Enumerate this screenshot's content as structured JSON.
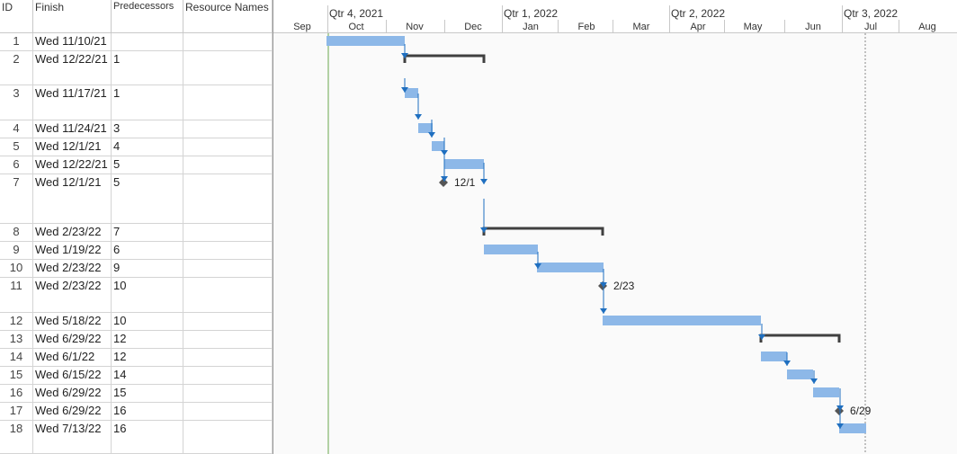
{
  "columns": {
    "id": "ID",
    "finish": "Finish",
    "predecessors": "Predecessors",
    "resource_names": "Resource Names"
  },
  "rows": [
    {
      "id": "1",
      "finish": "Wed 11/10/21",
      "pred": "",
      "res": ""
    },
    {
      "id": "2",
      "finish": "Wed 12/22/21",
      "pred": "1",
      "res": ""
    },
    {
      "id": "3",
      "finish": "Wed 11/17/21",
      "pred": "1",
      "res": ""
    },
    {
      "id": "4",
      "finish": "Wed 11/24/21",
      "pred": "3",
      "res": ""
    },
    {
      "id": "5",
      "finish": "Wed 12/1/21",
      "pred": "4",
      "res": ""
    },
    {
      "id": "6",
      "finish": "Wed 12/22/21",
      "pred": "5",
      "res": ""
    },
    {
      "id": "7",
      "finish": "Wed 12/1/21",
      "pred": "5",
      "res": ""
    },
    {
      "id": "8",
      "finish": "Wed 2/23/22",
      "pred": "7",
      "res": ""
    },
    {
      "id": "9",
      "finish": "Wed 1/19/22",
      "pred": "6",
      "res": ""
    },
    {
      "id": "10",
      "finish": "Wed 2/23/22",
      "pred": "9",
      "res": ""
    },
    {
      "id": "11",
      "finish": "Wed 2/23/22",
      "pred": "10",
      "res": ""
    },
    {
      "id": "12",
      "finish": "Wed 5/18/22",
      "pred": "10",
      "res": ""
    },
    {
      "id": "13",
      "finish": "Wed 6/29/22",
      "pred": "12",
      "res": ""
    },
    {
      "id": "14",
      "finish": "Wed 6/1/22",
      "pred": "12",
      "res": ""
    },
    {
      "id": "15",
      "finish": "Wed 6/15/22",
      "pred": "14",
      "res": ""
    },
    {
      "id": "16",
      "finish": "Wed 6/29/22",
      "pred": "15",
      "res": ""
    },
    {
      "id": "17",
      "finish": "Wed 6/29/22",
      "pred": "16",
      "res": ""
    },
    {
      "id": "18",
      "finish": "Wed 7/13/22",
      "pred": "16",
      "res": ""
    }
  ],
  "timeline": {
    "quarters": [
      "Qtr 4, 2021",
      "Qtr 1, 2022",
      "Qtr 2, 2022",
      "Qtr 3, 2022"
    ],
    "months": [
      "Sep",
      "Oct",
      "Nov",
      "Dec",
      "Jan",
      "Feb",
      "Mar",
      "Apr",
      "May",
      "Jun",
      "Jul",
      "Aug"
    ]
  },
  "milestones": [
    {
      "row": "7",
      "label": "12/1"
    },
    {
      "row": "11",
      "label": "2/23"
    },
    {
      "row": "17",
      "label": "6/29"
    }
  ],
  "colors": {
    "task_bar": "#8db8e8",
    "summary_bar": "#404040",
    "link": "#1f6fc0",
    "milestone": "#555555",
    "today_line": "#6aa84f"
  }
}
